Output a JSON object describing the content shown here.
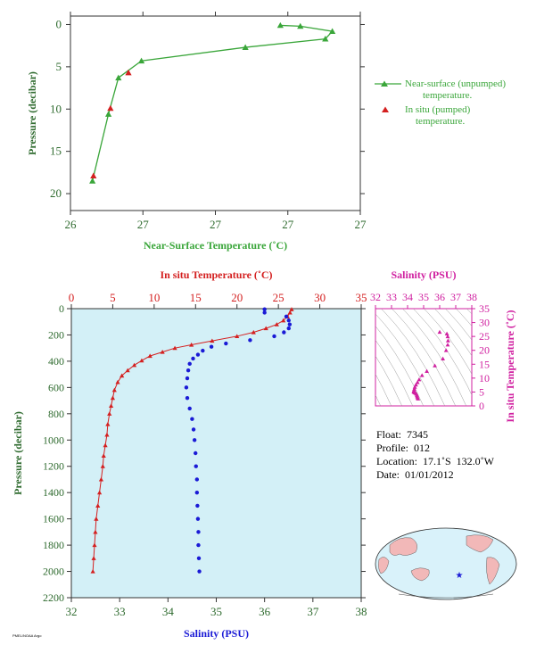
{
  "colors": {
    "near": "#3aa63a",
    "insitu": "#d42020",
    "salinity": "#1a1ad6",
    "tsmag": "#d020a0",
    "axis": "#2f6b2f",
    "panel": "#d3f0f7"
  },
  "top": {
    "xlabel": "Near-Surface Temperature (˚C)",
    "ylabel": "Pressure (decibar)",
    "xticks": [
      "26",
      "27",
      "27",
      "27",
      "27"
    ],
    "yticks": [
      "0",
      "5",
      "10",
      "15",
      "20"
    ],
    "legend": [
      "Near-surface (unpumped)",
      "temperature.",
      "In situ (pumped)",
      "temperature."
    ]
  },
  "main": {
    "top_xlabel": "In situ Temperature (˚C)",
    "bottom_xlabel": "Salinity (PSU)",
    "ylabel": "Pressure (decibar)",
    "temp_ticks": [
      "0",
      "5",
      "10",
      "15",
      "20",
      "25",
      "30",
      "35"
    ],
    "sal_ticks": [
      "32",
      "33",
      "34",
      "35",
      "36",
      "37",
      "38"
    ],
    "p_ticks": [
      "0",
      "200",
      "400",
      "600",
      "800",
      "1000",
      "1200",
      "1400",
      "1600",
      "1800",
      "2000",
      "2200"
    ]
  },
  "ts": {
    "title": "Salinity (PSU)",
    "xticks": [
      "32",
      "33",
      "34",
      "35",
      "36",
      "37",
      "38"
    ],
    "ylabel": "In situ Temperature (˚C)",
    "yticks": [
      "0",
      "5",
      "10",
      "15",
      "20",
      "25",
      "30",
      "35"
    ]
  },
  "info": {
    "float": "Float:  7345",
    "profile": "Profile:  012",
    "location": "Location:  17.1˚S  132.0˚W",
    "date": "Date:  01/01/2012"
  },
  "footer": "PMEL/NOAA Argo",
  "chart_data": [
    {
      "type": "scatter",
      "title": "",
      "xlabel": "Near-Surface Temperature (˚C)",
      "ylabel": "Pressure (decibar)",
      "ylim": [
        0,
        22
      ],
      "series": [
        {
          "name": "Near-surface (unpumped) temperature.",
          "points": [
            [
              26.22,
              18.5
            ],
            [
              26.38,
              10.6
            ],
            [
              26.48,
              6.3
            ],
            [
              26.71,
              4.3
            ],
            [
              27.75,
              2.7
            ],
            [
              28.55,
              1.7
            ],
            [
              28.62,
              0.8
            ],
            [
              28.3,
              0.2
            ],
            [
              28.1,
              0.1
            ]
          ]
        },
        {
          "name": "In situ (pumped) temperature.",
          "points": [
            [
              26.23,
              17.9
            ],
            [
              26.4,
              9.9
            ],
            [
              26.58,
              5.7
            ]
          ]
        }
      ]
    },
    {
      "type": "line",
      "title": "",
      "ylabel": "Pressure (decibar)",
      "ylim": [
        0,
        2200
      ],
      "series": [
        {
          "name": "In situ Temperature (˚C)",
          "xlim": [
            0,
            35
          ],
          "points": [
            [
              26.6,
              5
            ],
            [
              26.4,
              30
            ],
            [
              26.1,
              60
            ],
            [
              25.6,
              90
            ],
            [
              24.8,
              120
            ],
            [
              23.5,
              150
            ],
            [
              22.0,
              180
            ],
            [
              20.0,
              210
            ],
            [
              17.0,
              245
            ],
            [
              14.5,
              275
            ],
            [
              12.5,
              300
            ],
            [
              11.0,
              330
            ],
            [
              9.5,
              360
            ],
            [
              8.5,
              395
            ],
            [
              7.6,
              430
            ],
            [
              6.8,
              470
            ],
            [
              6.1,
              510
            ],
            [
              5.6,
              560
            ],
            [
              5.2,
              620
            ],
            [
              5.0,
              680
            ],
            [
              4.8,
              740
            ],
            [
              4.6,
              800
            ],
            [
              4.4,
              880
            ],
            [
              4.3,
              960
            ],
            [
              4.1,
              1040
            ],
            [
              3.9,
              1120
            ],
            [
              3.8,
              1200
            ],
            [
              3.6,
              1300
            ],
            [
              3.4,
              1400
            ],
            [
              3.2,
              1500
            ],
            [
              3.0,
              1600
            ],
            [
              2.9,
              1700
            ],
            [
              2.8,
              1800
            ],
            [
              2.7,
              1900
            ],
            [
              2.6,
              2000
            ]
          ]
        },
        {
          "name": "Salinity (PSU)",
          "xlim": [
            32,
            38
          ],
          "points": [
            [
              36.0,
              5
            ],
            [
              36.0,
              30
            ],
            [
              36.45,
              60
            ],
            [
              36.5,
              90
            ],
            [
              36.52,
              120
            ],
            [
              36.5,
              150
            ],
            [
              36.4,
              180
            ],
            [
              36.2,
              210
            ],
            [
              35.7,
              240
            ],
            [
              35.2,
              265
            ],
            [
              34.9,
              290
            ],
            [
              34.72,
              320
            ],
            [
              34.62,
              350
            ],
            [
              34.52,
              380
            ],
            [
              34.45,
              420
            ],
            [
              34.42,
              470
            ],
            [
              34.4,
              530
            ],
            [
              34.38,
              600
            ],
            [
              34.4,
              680
            ],
            [
              34.45,
              760
            ],
            [
              34.5,
              840
            ],
            [
              34.53,
              920
            ],
            [
              34.55,
              1000
            ],
            [
              34.57,
              1100
            ],
            [
              34.58,
              1200
            ],
            [
              34.6,
              1300
            ],
            [
              34.6,
              1400
            ],
            [
              34.61,
              1500
            ],
            [
              34.62,
              1600
            ],
            [
              34.63,
              1700
            ],
            [
              34.63,
              1800
            ],
            [
              34.64,
              1900
            ],
            [
              34.65,
              2000
            ]
          ]
        }
      ]
    },
    {
      "type": "scatter",
      "title": "Salinity (PSU)",
      "xlabel": "Salinity (PSU)",
      "ylabel": "In situ Temperature (˚C)",
      "xlim": [
        32,
        38
      ],
      "ylim": [
        0,
        35
      ],
      "series": [
        {
          "name": "T-S",
          "points": [
            [
              36.0,
              26.6
            ],
            [
              36.45,
              26.0
            ],
            [
              36.5,
              25.0
            ],
            [
              36.52,
              23.5
            ],
            [
              36.5,
              22.0
            ],
            [
              36.4,
              20.0
            ],
            [
              36.2,
              17.0
            ],
            [
              35.7,
              14.5
            ],
            [
              35.2,
              12.5
            ],
            [
              34.9,
              11.0
            ],
            [
              34.72,
              9.5
            ],
            [
              34.62,
              8.5
            ],
            [
              34.52,
              7.6
            ],
            [
              34.45,
              6.8
            ],
            [
              34.42,
              6.1
            ],
            [
              34.4,
              5.6
            ],
            [
              34.38,
              5.2
            ],
            [
              34.4,
              5.0
            ],
            [
              34.45,
              4.8
            ],
            [
              34.5,
              4.6
            ],
            [
              34.55,
              4.3
            ],
            [
              34.58,
              3.8
            ],
            [
              34.6,
              3.4
            ],
            [
              34.62,
              3.0
            ],
            [
              34.65,
              2.6
            ]
          ]
        }
      ]
    }
  ]
}
